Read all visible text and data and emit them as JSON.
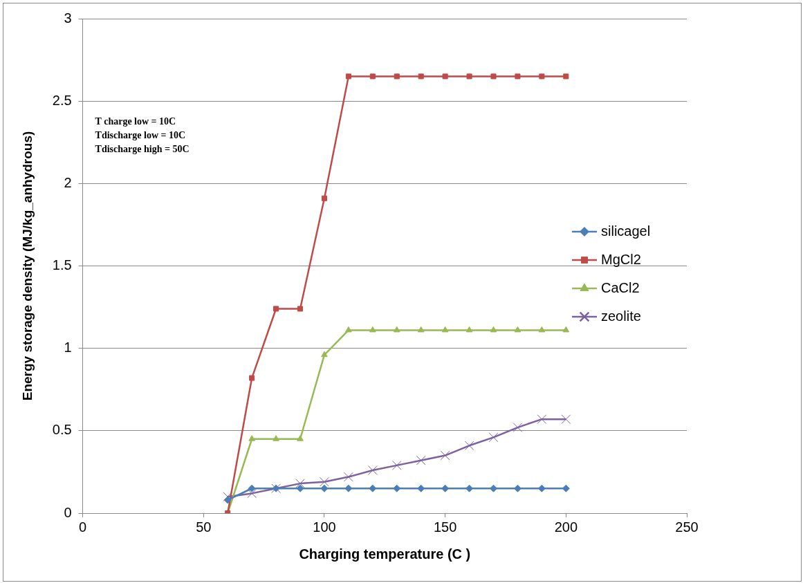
{
  "chart_data": {
    "type": "line",
    "xlabel": "Charging temperature (C )",
    "ylabel": "Energy storage density (MJ/kg_anhydrous)",
    "annotations": [
      "T charge low = 10C",
      "Tdischarge low = 10C",
      "Tdischarge high = 50C"
    ],
    "x": [
      60,
      70,
      80,
      90,
      100,
      110,
      120,
      130,
      140,
      150,
      160,
      170,
      180,
      190,
      200
    ],
    "series": [
      {
        "name": "silicagel",
        "color": "#4a7ebb",
        "marker": "diamond",
        "values": [
          0.08,
          0.15,
          0.15,
          0.15,
          0.15,
          0.15,
          0.15,
          0.15,
          0.15,
          0.15,
          0.15,
          0.15,
          0.15,
          0.15,
          0.15
        ]
      },
      {
        "name": "MgCl2",
        "color": "#be4b48",
        "marker": "square",
        "values": [
          0,
          0.82,
          1.24,
          1.24,
          1.91,
          2.65,
          2.65,
          2.65,
          2.65,
          2.65,
          2.65,
          2.65,
          2.65,
          2.65,
          2.65
        ]
      },
      {
        "name": "CaCl2",
        "color": "#98b954",
        "marker": "triangle",
        "values": [
          0,
          0.45,
          0.45,
          0.45,
          0.96,
          1.11,
          1.11,
          1.11,
          1.11,
          1.11,
          1.11,
          1.11,
          1.11,
          1.11,
          1.11
        ]
      },
      {
        "name": "zeolite",
        "color": "#7d60a0",
        "marker": "cross",
        "values": [
          0.1,
          0.12,
          0.15,
          0.18,
          0.19,
          0.22,
          0.26,
          0.29,
          0.32,
          0.35,
          0.41,
          0.46,
          0.52,
          0.57,
          0.57
        ]
      }
    ],
    "xlim": [
      0,
      250
    ],
    "xticks": [
      0,
      50,
      100,
      150,
      200,
      250
    ],
    "ylim": [
      0,
      3
    ],
    "yticks": [
      0,
      0.5,
      1,
      1.5,
      2,
      2.5,
      3
    ],
    "grid": "y",
    "legend": "right",
    "line_style": "solid"
  }
}
